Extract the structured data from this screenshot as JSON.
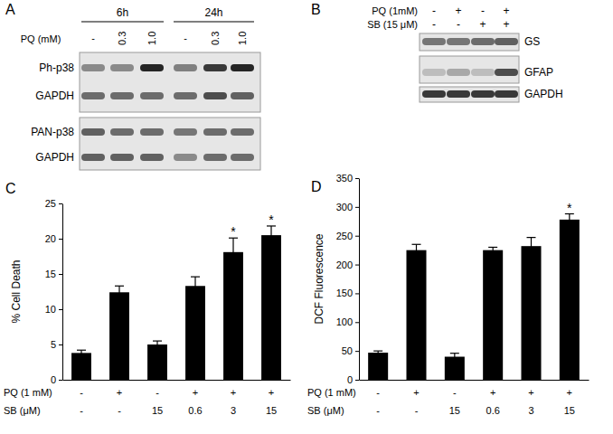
{
  "chart_data": [
    {
      "type": "bar",
      "title": "C",
      "y_label": "% Cell Death",
      "categories": [
        null,
        null,
        null,
        null,
        null,
        null
      ],
      "values": [
        3.8,
        12.4,
        5.0,
        13.3,
        18.1,
        20.5
      ],
      "errors": [
        0.4,
        0.9,
        0.5,
        1.3,
        2.0,
        1.3
      ],
      "significance": [
        null,
        null,
        null,
        null,
        "*",
        "*"
      ],
      "condition_rows": [
        {
          "label": "PQ (1 mM)",
          "cells": [
            "-",
            "+",
            "-",
            "+",
            "+",
            "+"
          ]
        },
        {
          "label": "SB (μM)",
          "cells": [
            "-",
            "-",
            "15",
            "0.6",
            "3",
            "15"
          ]
        }
      ],
      "color": "#000000",
      "ylim": [
        0,
        25
      ],
      "yticks": [
        0,
        5,
        10,
        15,
        20,
        25
      ]
    },
    {
      "type": "bar",
      "title": "D",
      "y_label": "DCF Fluorescence",
      "categories": [
        null,
        null,
        null,
        null,
        null,
        null
      ],
      "values": [
        47,
        225,
        40,
        225,
        232,
        278
      ],
      "errors": [
        3,
        10,
        6,
        5,
        15,
        10
      ],
      "significance": [
        null,
        null,
        null,
        null,
        null,
        "*"
      ],
      "condition_rows": [
        {
          "label": "PQ (1 mM)",
          "cells": [
            "-",
            "+",
            "-",
            "+",
            "+",
            "+"
          ]
        },
        {
          "label": "SB (μM)",
          "cells": [
            "-",
            "-",
            "15",
            "0.6",
            "3",
            "15"
          ]
        }
      ],
      "color": "#000000",
      "ylim": [
        0,
        350
      ],
      "yticks": [
        0,
        50,
        100,
        150,
        200,
        250,
        300,
        350
      ]
    }
  ],
  "blots": [
    {
      "panel": "A",
      "treatment_label": "PQ (mM)",
      "lane_groups": [
        {
          "label": "6h",
          "lanes": [
            "-",
            "0.3",
            "1.0"
          ]
        },
        {
          "label": "24h",
          "lanes": [
            "-",
            "0.3",
            "1.0"
          ]
        }
      ],
      "membranes": [
        {
          "rows": [
            {
              "label": "Ph-p38",
              "bands": [
                0.45,
                0.45,
                0.95,
                0.5,
                0.85,
                0.95
              ]
            },
            {
              "label": "GAPDH",
              "bands": [
                0.6,
                0.6,
                0.6,
                0.6,
                0.75,
                0.65
              ]
            }
          ]
        },
        {
          "rows": [
            {
              "label": "PAN-p38",
              "bands": [
                0.65,
                0.6,
                0.6,
                0.55,
                0.6,
                0.6
              ]
            },
            {
              "label": "GAPDH",
              "bands": [
                0.65,
                0.65,
                0.65,
                0.45,
                0.6,
                0.6
              ]
            }
          ]
        }
      ]
    },
    {
      "panel": "B",
      "treatments": [
        {
          "label": "PQ (1mM)",
          "lanes": [
            "-",
            "+",
            "-",
            "+"
          ]
        },
        {
          "label": "SB (15 μM)",
          "lanes": [
            "-",
            "-",
            "+",
            "+"
          ]
        }
      ],
      "membranes": [
        {
          "rows": [
            {
              "label": "GS",
              "bands": [
                0.55,
                0.55,
                0.6,
                0.65
              ]
            }
          ]
        },
        {
          "rows": [
            {
              "label": "GFAP",
              "bands": [
                0.2,
                0.3,
                0.2,
                0.75
              ]
            }
          ]
        },
        {
          "rows": [
            {
              "label": "GAPDH",
              "bands": [
                0.85,
                0.85,
                0.85,
                0.85
              ]
            }
          ]
        }
      ]
    }
  ]
}
